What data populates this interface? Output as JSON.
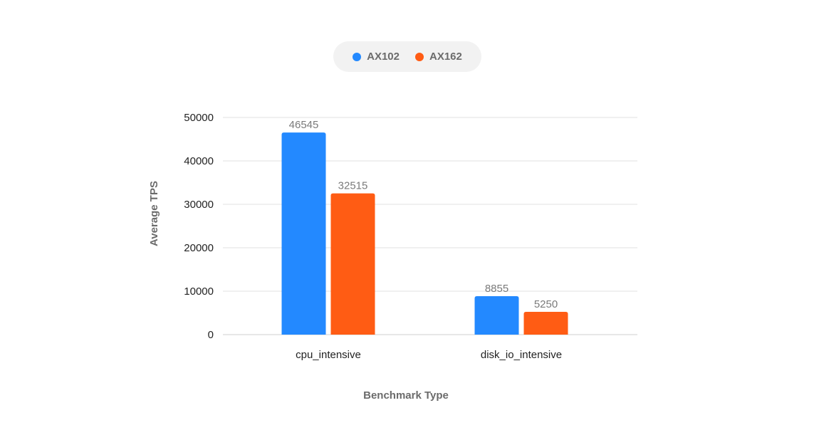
{
  "chart_data": {
    "type": "bar",
    "title": "",
    "xlabel": "Benchmark Type",
    "ylabel": "Average TPS",
    "categories": [
      "cpu_intensive",
      "disk_io_intensive"
    ],
    "series": [
      {
        "name": "AX102",
        "color": "#2389ff",
        "values": [
          46545,
          8855
        ]
      },
      {
        "name": "AX162",
        "color": "#ff5c14",
        "values": [
          32515,
          5250
        ]
      }
    ],
    "ylim": [
      0,
      50000
    ],
    "yticks": [
      0,
      10000,
      20000,
      30000,
      40000,
      50000
    ],
    "grid": true,
    "legend": "top-center"
  }
}
